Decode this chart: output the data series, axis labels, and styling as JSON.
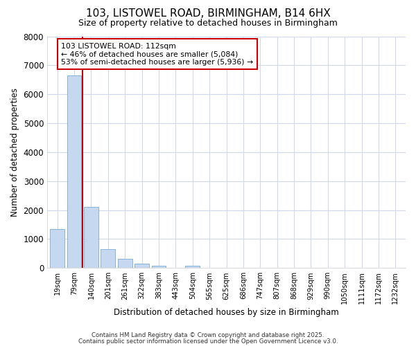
{
  "title1": "103, LISTOWEL ROAD, BIRMINGHAM, B14 6HX",
  "title2": "Size of property relative to detached houses in Birmingham",
  "xlabel": "Distribution of detached houses by size in Birmingham",
  "ylabel": "Number of detached properties",
  "categories": [
    "19sqm",
    "79sqm",
    "140sqm",
    "201sqm",
    "261sqm",
    "322sqm",
    "383sqm",
    "443sqm",
    "504sqm",
    "565sqm",
    "625sqm",
    "686sqm",
    "747sqm",
    "807sqm",
    "868sqm",
    "929sqm",
    "990sqm",
    "1050sqm",
    "1111sqm",
    "1172sqm",
    "1232sqm"
  ],
  "values": [
    1350,
    6650,
    2100,
    650,
    320,
    150,
    80,
    0,
    80,
    0,
    0,
    0,
    0,
    0,
    0,
    0,
    0,
    0,
    0,
    0,
    0
  ],
  "bar_color": "#c5d8f0",
  "bar_edge_color": "#7aabd4",
  "red_line_x": 1.5,
  "annotation_text": "103 LISTOWEL ROAD: 112sqm\n← 46% of detached houses are smaller (5,084)\n53% of semi-detached houses are larger (5,936) →",
  "annotation_box_color": "white",
  "annotation_box_edge_color": "#cc0000",
  "red_line_color": "#cc0000",
  "ylim": [
    0,
    8000
  ],
  "yticks": [
    0,
    1000,
    2000,
    3000,
    4000,
    5000,
    6000,
    7000,
    8000
  ],
  "background_color": "#ffffff",
  "plot_bg_color": "#ffffff",
  "grid_color": "#d0d8ee",
  "footer1": "Contains HM Land Registry data © Crown copyright and database right 2025.",
  "footer2": "Contains public sector information licensed under the Open Government Licence v3.0."
}
